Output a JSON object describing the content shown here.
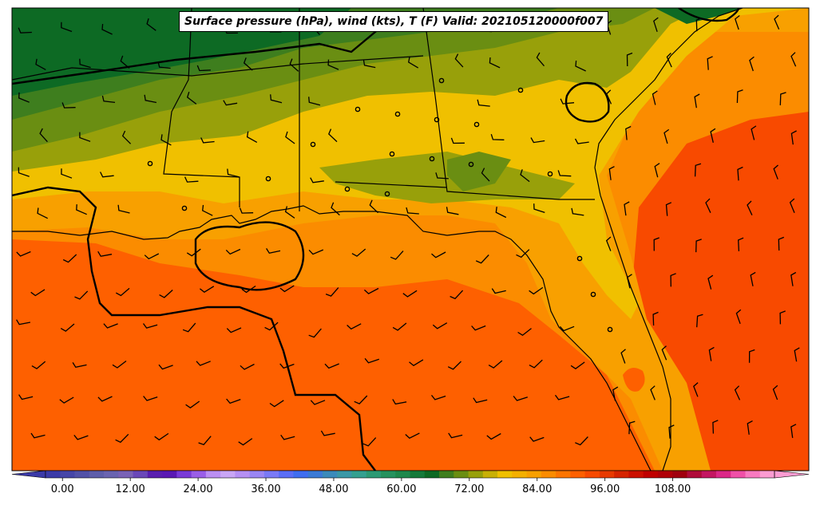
{
  "title": "Surface pressure (hPa), wind (kts), T (F) Valid: 202105120000f007",
  "colorbar": {
    "ticks": [
      "0.00",
      "12.00",
      "24.00",
      "36.00",
      "48.00",
      "60.00",
      "72.00",
      "84.00",
      "96.00",
      "108.00"
    ],
    "tick_values": [
      0,
      12,
      24,
      36,
      48,
      60,
      72,
      84,
      96,
      108
    ],
    "vmin": -3,
    "vmax": 126,
    "step": 3,
    "colors": [
      "#3b3aa8",
      "#4646a8",
      "#5252a8",
      "#5e5eaa",
      "#6a64b0",
      "#7a62b6",
      "#6a48b8",
      "#5a1fb0",
      "#5a19b4",
      "#7a3ad8",
      "#9a5ee8",
      "#bb8ff2",
      "#c9a6f6",
      "#b690f4",
      "#9a86f4",
      "#7a7af6",
      "#5a6ef6",
      "#3f6ef0",
      "#3a7ad6",
      "#3a8aba",
      "#3a98a6",
      "#34a090",
      "#2c9a74",
      "#26925e",
      "#1e884c",
      "#157a3a",
      "#0d6a24",
      "#3e7e1e",
      "#6a8e12",
      "#98a00a",
      "#c8b006",
      "#f0c000",
      "#f4b000",
      "#f8a000",
      "#fb8c00",
      "#fd7500",
      "#fe6000",
      "#f84a00",
      "#e83a00",
      "#d62400",
      "#cc1000",
      "#c00000",
      "#b00008",
      "#a0000e",
      "#b00c3a",
      "#c41662",
      "#dc2888",
      "#f050a8",
      "#f87ac0",
      "#fc9cd2"
    ]
  },
  "legend_colors": {
    "very_warm": "#f84a00",
    "warm": "#fe6000",
    "orange": "#fb8c00",
    "amber": "#f8a000",
    "yellow": "#f0c000",
    "olive": "#98a00a",
    "light_green": "#6a8e12",
    "green": "#3e7e1e",
    "dark_green": "#0d6a24"
  }
}
